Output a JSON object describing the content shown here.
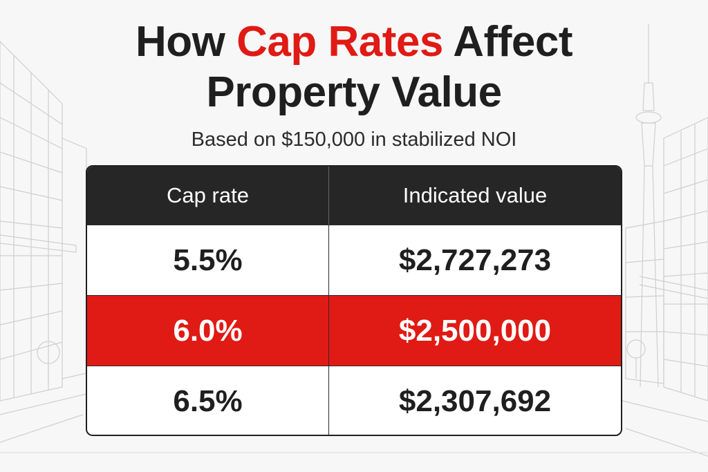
{
  "title": {
    "line1_pre": "How ",
    "line1_accent": "Cap Rates",
    "line1_post": " Affect",
    "line2": "Property Value"
  },
  "subtitle": "Based on $150,000 in stabilized NOI",
  "table": {
    "headers": [
      "Cap rate",
      "Indicated value"
    ],
    "rows": [
      {
        "cap_rate": "5.5%",
        "value": "$2,727,273",
        "highlighted": false
      },
      {
        "cap_rate": "6.0%",
        "value": "$2,500,000",
        "highlighted": true
      },
      {
        "cap_rate": "6.5%",
        "value": "$2,307,692",
        "highlighted": false
      }
    ]
  },
  "colors": {
    "accent": "#e01a14",
    "header_bg": "#262626",
    "text": "#1f1f1f",
    "background": "#f7f7f7"
  }
}
